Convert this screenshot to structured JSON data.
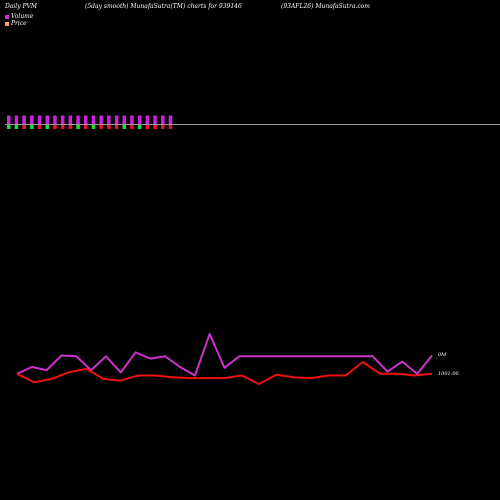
{
  "header": {
    "left": "Daily PVM",
    "middle": "(5day smooth) MunafaSutra(TM) charts for 939146",
    "right": "(93AFL26) MunafaSutra.com"
  },
  "legend": [
    {
      "label": "Volume",
      "color": "#cc33cc"
    },
    {
      "label": "Price",
      "color": "#ff9966"
    }
  ],
  "chart_data": {
    "type": "line",
    "pvm_bars": {
      "up_color": "#cc22dd",
      "down_colors": [
        "#22dd33",
        "#ee1133"
      ],
      "up": [
        2,
        2,
        2,
        2,
        2,
        2,
        2,
        2,
        2,
        2,
        2,
        2,
        2,
        2,
        2,
        2,
        2,
        2,
        2,
        2,
        2,
        2
      ],
      "down": [
        1,
        1,
        1,
        1,
        1,
        1,
        1,
        1,
        1,
        1,
        1,
        1,
        1,
        1,
        1,
        1,
        1,
        1,
        1,
        1,
        1,
        1
      ],
      "down_kind": [
        "g",
        "g",
        "r",
        "g",
        "r",
        "g",
        "r",
        "r",
        "r",
        "g",
        "r",
        "g",
        "r",
        "r",
        "r",
        "g",
        "r",
        "g",
        "r",
        "r",
        "r",
        "r"
      ]
    },
    "series": [
      {
        "name": "Volume",
        "color": "#cc33cc",
        "values": [
          0.2,
          0.65,
          0.45,
          1.4,
          1.35,
          0.45,
          1.35,
          0.3,
          1.6,
          1.2,
          1.35,
          0.65,
          0.1,
          2.8,
          0.6,
          1.35,
          1.35,
          1.35,
          1.35,
          1.35,
          1.35,
          1.35,
          1.35,
          1.35,
          1.35,
          0.35,
          1.0,
          0.2,
          1.4
        ]
      },
      {
        "name": "Price",
        "color": "#ee1111",
        "values": [
          1001.0,
          1000.0,
          1000.4,
          1001.2,
          1001.6,
          1000.4,
          1000.2,
          1000.8,
          1000.8,
          1000.6,
          1000.5,
          1000.5,
          1000.5,
          1000.8,
          999.8,
          1000.9,
          1000.6,
          1000.5,
          1000.8,
          1000.8,
          1002.4,
          1001.0,
          1001.0,
          1000.8,
          1001.0
        ]
      }
    ],
    "volume_label": "0M",
    "price_label": "1001.00"
  }
}
